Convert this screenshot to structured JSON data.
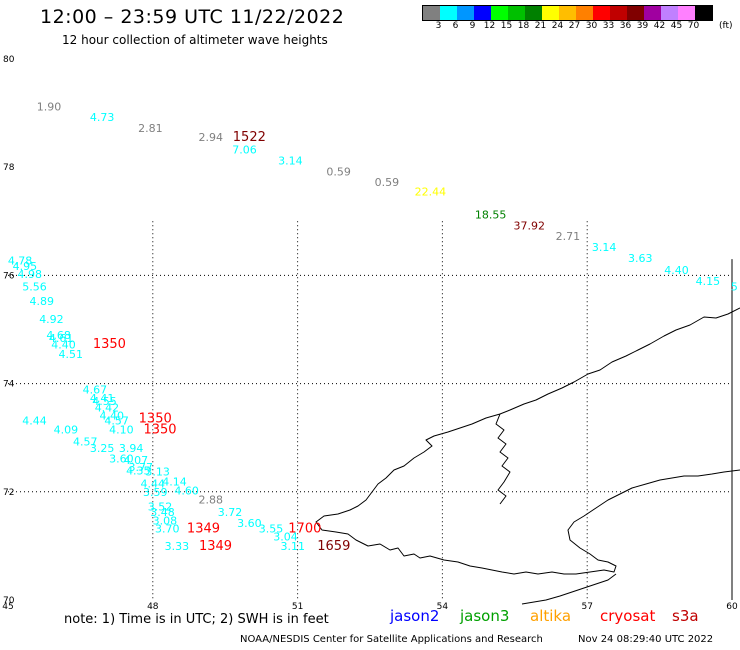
{
  "header": {
    "title": "12:00 – 23:59 UTC 11/22/2022",
    "subtitle": "12 hour collection of altimeter wave heights"
  },
  "legend": {
    "colors": [
      "#808080",
      "#00ffff",
      "#0096ff",
      "#0000ff",
      "#00ff00",
      "#00c000",
      "#008000",
      "#ffff00",
      "#ffbe00",
      "#ff8000",
      "#ff0000",
      "#c00000",
      "#800000",
      "#a000a0",
      "#c080ff",
      "#ff80ff",
      "#000000"
    ],
    "labels": [
      "3",
      "6",
      "9",
      "12",
      "15",
      "18",
      "21",
      "24",
      "27",
      "30",
      "33",
      "36",
      "39",
      "42",
      "45",
      "70"
    ],
    "unit": "(ft)"
  },
  "axes": {
    "y_labels": [
      {
        "text": "80",
        "lat": 80
      },
      {
        "text": "78",
        "lat": 78
      },
      {
        "text": "76",
        "lat": 76
      },
      {
        "text": "74",
        "lat": 74
      },
      {
        "text": "72",
        "lat": 72
      },
      {
        "text": "70",
        "lat": 70
      }
    ],
    "x_labels": [
      {
        "text": "45",
        "lon": 45
      },
      {
        "text": "48",
        "lon": 48
      },
      {
        "text": "51",
        "lon": 51
      },
      {
        "text": "54",
        "lon": 54
      },
      {
        "text": "57",
        "lon": 57
      },
      {
        "text": "60",
        "lon": 60
      }
    ]
  },
  "observations": [
    {
      "text": "1.90",
      "c": "#808080",
      "lon": 45.85,
      "lat": 79.05
    },
    {
      "text": "4.73",
      "c": "#00ffff",
      "lon": 46.95,
      "lat": 78.85
    },
    {
      "text": "2.81",
      "c": "#808080",
      "lon": 47.95,
      "lat": 78.65
    },
    {
      "text": "2.94",
      "c": "#808080",
      "lon": 49.2,
      "lat": 78.48
    },
    {
      "text": "1522",
      "c": "#800000",
      "lon": 50.0,
      "lat": 78.48
    },
    {
      "text": "7.06",
      "c": "#00ffff",
      "lon": 49.9,
      "lat": 78.25
    },
    {
      "text": "3.14",
      "c": "#00ffff",
      "lon": 50.85,
      "lat": 78.05
    },
    {
      "text": "0.59",
      "c": "#808080",
      "lon": 51.85,
      "lat": 77.85
    },
    {
      "text": "0.59",
      "c": "#808080",
      "lon": 52.85,
      "lat": 77.65
    },
    {
      "text": "22.44",
      "c": "#ffff00",
      "lon": 53.75,
      "lat": 77.48
    },
    {
      "text": "18.55",
      "c": "#008000",
      "lon": 55.0,
      "lat": 77.05
    },
    {
      "text": "37.92",
      "c": "#800000",
      "lon": 55.8,
      "lat": 76.85
    },
    {
      "text": "2.71",
      "c": "#808080",
      "lon": 56.6,
      "lat": 76.65
    },
    {
      "text": "3.14",
      "c": "#00ffff",
      "lon": 57.35,
      "lat": 76.45
    },
    {
      "text": "3.63",
      "c": "#00ffff",
      "lon": 58.1,
      "lat": 76.25
    },
    {
      "text": "4.40",
      "c": "#00ffff",
      "lon": 58.85,
      "lat": 76.03
    },
    {
      "text": "4.15",
      "c": "#00ffff",
      "lon": 59.5,
      "lat": 75.82
    },
    {
      "text": "5",
      "c": "#00ffff",
      "lon": 60.05,
      "lat": 75.72
    },
    {
      "text": "4.78",
      "c": "#00ffff",
      "lon": 45.25,
      "lat": 76.2
    },
    {
      "text": "4.95",
      "c": "#00ffff",
      "lon": 45.35,
      "lat": 76.1
    },
    {
      "text": "4.98",
      "c": "#00ffff",
      "lon": 45.45,
      "lat": 75.95
    },
    {
      "text": "5.56",
      "c": "#00ffff",
      "lon": 45.55,
      "lat": 75.72
    },
    {
      "text": "4.89",
      "c": "#00ffff",
      "lon": 45.7,
      "lat": 75.45
    },
    {
      "text": "4.92",
      "c": "#00ffff",
      "lon": 45.9,
      "lat": 75.12
    },
    {
      "text": "4.68",
      "c": "#00ffff",
      "lon": 46.05,
      "lat": 74.82
    },
    {
      "text": "4.61",
      "c": "#00ffff",
      "lon": 46.1,
      "lat": 74.77
    },
    {
      "text": "4.40",
      "c": "#00ffff",
      "lon": 46.15,
      "lat": 74.65
    },
    {
      "text": "1350",
      "c": "#ff0000",
      "lon": 47.1,
      "lat": 74.66
    },
    {
      "text": "4.51",
      "c": "#00ffff",
      "lon": 46.3,
      "lat": 74.47
    },
    {
      "text": "4.67",
      "c": "#00ffff",
      "lon": 46.8,
      "lat": 73.82
    },
    {
      "text": "4.41",
      "c": "#00ffff",
      "lon": 46.95,
      "lat": 73.66
    },
    {
      "text": "4.55",
      "c": "#00ffff",
      "lon": 47.0,
      "lat": 73.6
    },
    {
      "text": "4.42",
      "c": "#00ffff",
      "lon": 47.05,
      "lat": 73.48
    },
    {
      "text": "4.40",
      "c": "#00ffff",
      "lon": 47.15,
      "lat": 73.34
    },
    {
      "text": "4.57",
      "c": "#00ffff",
      "lon": 47.25,
      "lat": 73.24
    },
    {
      "text": "4.10",
      "c": "#00ffff",
      "lon": 47.35,
      "lat": 73.08
    },
    {
      "text": "1350",
      "c": "#ff0000",
      "lon": 48.05,
      "lat": 73.28
    },
    {
      "text": "1350",
      "c": "#ff0000",
      "lon": 48.15,
      "lat": 73.08
    },
    {
      "text": "4.44",
      "c": "#00ffff",
      "lon": 45.55,
      "lat": 73.24
    },
    {
      "text": "4.09",
      "c": "#00ffff",
      "lon": 46.2,
      "lat": 73.08
    },
    {
      "text": "4.57",
      "c": "#00ffff",
      "lon": 46.6,
      "lat": 72.86
    },
    {
      "text": "3.25",
      "c": "#00ffff",
      "lon": 46.95,
      "lat": 72.74
    },
    {
      "text": "3.94",
      "c": "#00ffff",
      "lon": 47.55,
      "lat": 72.74
    },
    {
      "text": "3.60",
      "c": "#00ffff",
      "lon": 47.35,
      "lat": 72.54
    },
    {
      "text": "4.07",
      "c": "#00ffff",
      "lon": 47.65,
      "lat": 72.51
    },
    {
      "text": "3.77",
      "c": "#00ffff",
      "lon": 47.75,
      "lat": 72.38
    },
    {
      "text": "4.35",
      "c": "#00ffff",
      "lon": 47.7,
      "lat": 72.32
    },
    {
      "text": "3.13",
      "c": "#00ffff",
      "lon": 48.1,
      "lat": 72.3
    },
    {
      "text": "4.14",
      "c": "#00ffff",
      "lon": 48.45,
      "lat": 72.12
    },
    {
      "text": "4.44",
      "c": "#00ffff",
      "lon": 48.0,
      "lat": 72.08
    },
    {
      "text": "4.60",
      "c": "#00ffff",
      "lon": 48.7,
      "lat": 71.95
    },
    {
      "text": "3.59",
      "c": "#00ffff",
      "lon": 48.05,
      "lat": 71.92
    },
    {
      "text": "2.88",
      "c": "#808080",
      "lon": 49.2,
      "lat": 71.78
    },
    {
      "text": "3.52",
      "c": "#00ffff",
      "lon": 48.15,
      "lat": 71.65
    },
    {
      "text": "3.48",
      "c": "#00ffff",
      "lon": 48.2,
      "lat": 71.55
    },
    {
      "text": "3.72",
      "c": "#00ffff",
      "lon": 49.6,
      "lat": 71.55
    },
    {
      "text": "3.08",
      "c": "#00ffff",
      "lon": 48.25,
      "lat": 71.4
    },
    {
      "text": "3.60",
      "c": "#00ffff",
      "lon": 50.0,
      "lat": 71.35
    },
    {
      "text": "3.70",
      "c": "#00ffff",
      "lon": 48.3,
      "lat": 71.25
    },
    {
      "text": "1349",
      "c": "#ff0000",
      "lon": 49.05,
      "lat": 71.25
    },
    {
      "text": "3.55",
      "c": "#00ffff",
      "lon": 50.45,
      "lat": 71.25
    },
    {
      "text": "1700",
      "c": "#ff0000",
      "lon": 51.15,
      "lat": 71.25
    },
    {
      "text": "3.04",
      "c": "#00ffff",
      "lon": 50.75,
      "lat": 71.1
    },
    {
      "text": "3.33",
      "c": "#00ffff",
      "lon": 48.5,
      "lat": 70.92
    },
    {
      "text": "1349",
      "c": "#ff0000",
      "lon": 49.3,
      "lat": 70.92
    },
    {
      "text": "3.11",
      "c": "#00ffff",
      "lon": 50.9,
      "lat": 70.92
    },
    {
      "text": "1659",
      "c": "#800000",
      "lon": 51.75,
      "lat": 70.92
    }
  ],
  "footer": {
    "note": "note:  1) Time is in UTC;  2) SWH is in feet",
    "satellites": [
      {
        "text": "jason2",
        "c": "#0000ff"
      },
      {
        "text": "jason3",
        "c": "#00a000"
      },
      {
        "text": "altika",
        "c": "#ffa000"
      },
      {
        "text": "cryosat",
        "c": "#ff0000"
      },
      {
        "text": "s3a",
        "c": "#c00000"
      }
    ],
    "credit": "NOAA/NESDIS Center for Satellite Applications and Research",
    "timestamp": "Nov 24 08:29:40 UTC 2022"
  }
}
